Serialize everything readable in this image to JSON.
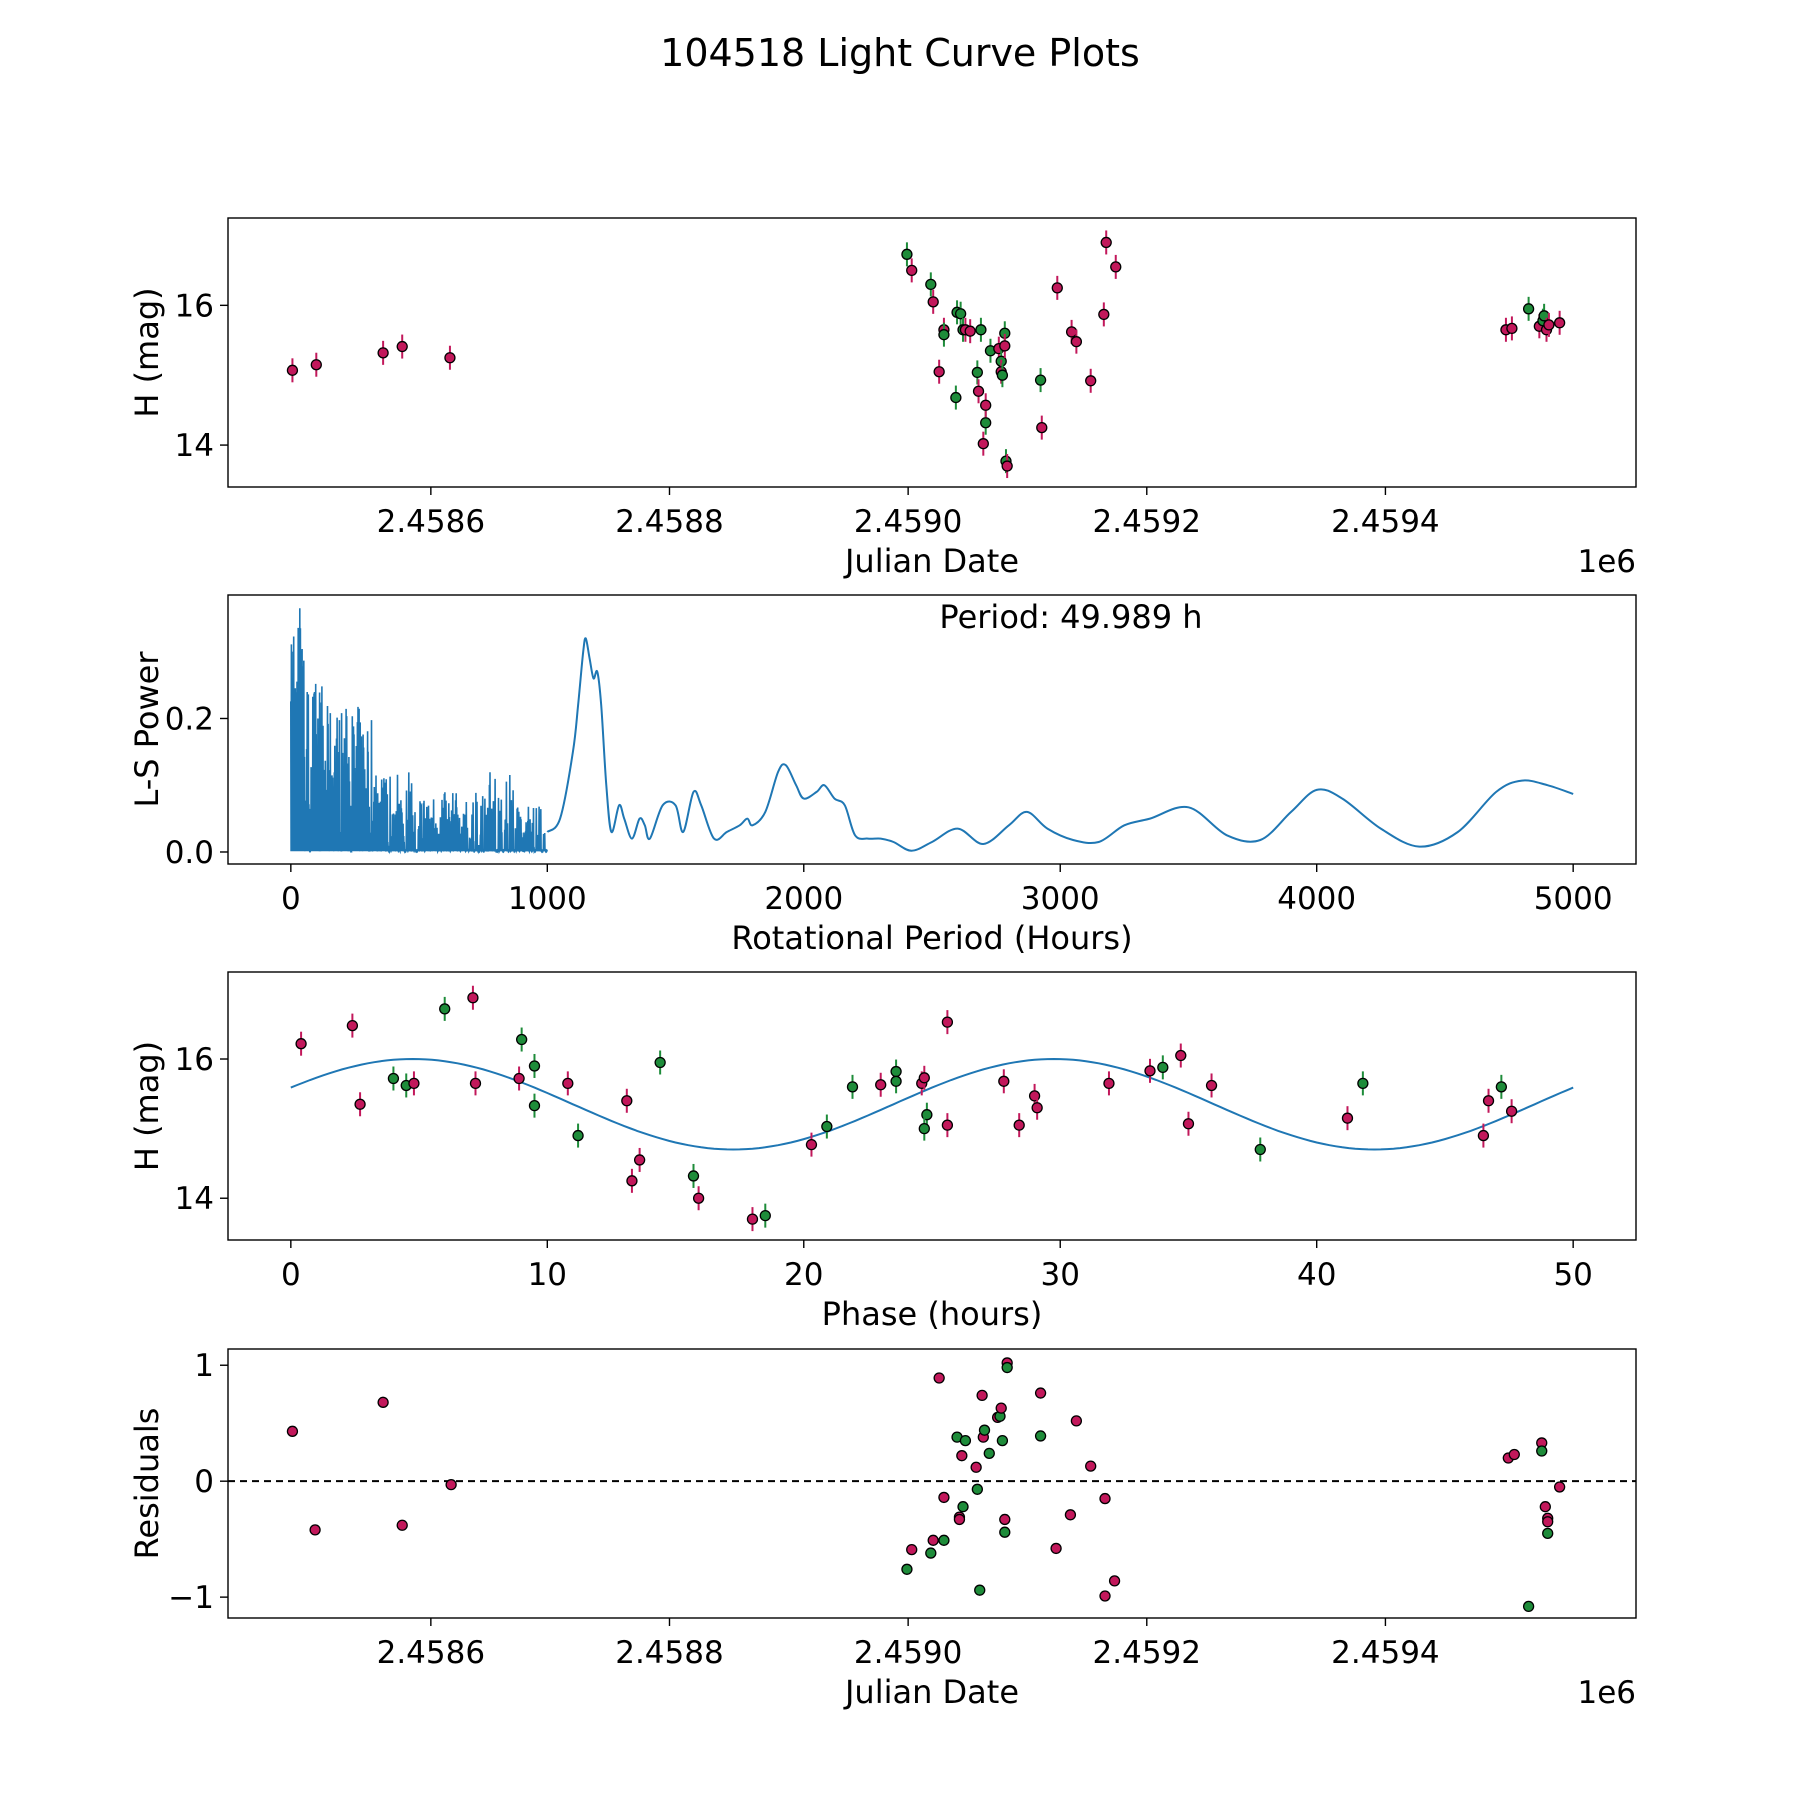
{
  "title": "104518 Light Curve Plots",
  "colors": {
    "red": "#c2185b",
    "green": "#1e8c3a",
    "line": "#1f77b4",
    "axis": "#000000"
  },
  "chart_data": [
    {
      "type": "scatter",
      "name": "light-curve",
      "xlabel": "Julian Date",
      "ylabel": "H (mag)",
      "x_offset_label": "1e6",
      "xlim": [
        2.45843,
        2.45961
      ],
      "ylim": [
        13.4,
        17.25
      ],
      "xticks": [
        2.4586,
        2.4588,
        2.459,
        2.4592,
        2.4594
      ],
      "xtick_labels": [
        "2.4586",
        "2.4588",
        "2.4590",
        "2.4592",
        "2.4594"
      ],
      "yticks": [
        14,
        16
      ],
      "ytick_labels": [
        "14",
        "16"
      ],
      "points": [
        [
          2.458484,
          15.07,
          "r"
        ],
        [
          2.458504,
          15.15,
          "r"
        ],
        [
          2.45856,
          15.32,
          "r"
        ],
        [
          2.458576,
          15.41,
          "r"
        ],
        [
          2.458616,
          15.25,
          "r"
        ],
        [
          2.458999,
          16.73,
          "g"
        ],
        [
          2.459003,
          16.5,
          "r"
        ],
        [
          2.459019,
          16.3,
          "g"
        ],
        [
          2.459021,
          16.05,
          "r"
        ],
        [
          2.45903,
          15.65,
          "r"
        ],
        [
          2.45903,
          15.58,
          "g"
        ],
        [
          2.459026,
          15.05,
          "r"
        ],
        [
          2.459041,
          15.9,
          "g"
        ],
        [
          2.45904,
          14.68,
          "g"
        ],
        [
          2.459044,
          15.88,
          "g"
        ],
        [
          2.459046,
          15.65,
          "g"
        ],
        [
          2.459048,
          15.65,
          "r"
        ],
        [
          2.459052,
          15.63,
          "r"
        ],
        [
          2.459058,
          15.04,
          "g"
        ],
        [
          2.459059,
          14.77,
          "r"
        ],
        [
          2.459061,
          15.65,
          "g"
        ],
        [
          2.459063,
          14.02,
          "r"
        ],
        [
          2.459065,
          14.32,
          "g"
        ],
        [
          2.459065,
          14.57,
          "r"
        ],
        [
          2.459069,
          15.35,
          "g"
        ],
        [
          2.459076,
          15.38,
          "r"
        ],
        [
          2.459078,
          15.2,
          "g"
        ],
        [
          2.459078,
          15.05,
          "r"
        ],
        [
          2.459079,
          15.0,
          "g"
        ],
        [
          2.459081,
          15.6,
          "g"
        ],
        [
          2.459081,
          15.42,
          "r"
        ],
        [
          2.459082,
          13.77,
          "g"
        ],
        [
          2.459083,
          13.7,
          "r"
        ],
        [
          2.459111,
          14.93,
          "g"
        ],
        [
          2.459112,
          14.25,
          "r"
        ],
        [
          2.459125,
          16.25,
          "r"
        ],
        [
          2.459137,
          15.62,
          "r"
        ],
        [
          2.459141,
          15.48,
          "r"
        ],
        [
          2.459153,
          14.92,
          "r"
        ],
        [
          2.459164,
          15.87,
          "r"
        ],
        [
          2.459166,
          16.9,
          "r"
        ],
        [
          2.459174,
          16.55,
          "r"
        ],
        [
          2.459501,
          15.65,
          "r"
        ],
        [
          2.459506,
          15.67,
          "r"
        ],
        [
          2.45952,
          15.95,
          "g"
        ],
        [
          2.459529,
          15.7,
          "r"
        ],
        [
          2.459532,
          15.78,
          "g"
        ],
        [
          2.459533,
          15.85,
          "g"
        ],
        [
          2.459535,
          15.65,
          "r"
        ],
        [
          2.459537,
          15.72,
          "r"
        ],
        [
          2.459546,
          15.75,
          "r"
        ]
      ]
    },
    {
      "type": "line",
      "name": "periodogram",
      "xlabel": "Rotational Period (Hours)",
      "ylabel": "L-S Power",
      "annotation": "Period: 49.989 h",
      "xlim": [
        -245,
        5245
      ],
      "ylim": [
        -0.018,
        0.385
      ],
      "xticks": [
        0,
        1000,
        2000,
        3000,
        4000,
        5000
      ],
      "xtick_labels": [
        "0",
        "1000",
        "2000",
        "3000",
        "4000",
        "5000"
      ],
      "yticks": [
        0.0,
        0.2
      ],
      "ytick_labels": [
        "0.0",
        "0.2"
      ],
      "smooth_curve": [
        [
          1000,
          0.03
        ],
        [
          1050,
          0.05
        ],
        [
          1100,
          0.15
        ],
        [
          1120,
          0.22
        ],
        [
          1140,
          0.3
        ],
        [
          1150,
          0.32
        ],
        [
          1165,
          0.29
        ],
        [
          1180,
          0.26
        ],
        [
          1195,
          0.27
        ],
        [
          1210,
          0.22
        ],
        [
          1230,
          0.1
        ],
        [
          1250,
          0.03
        ],
        [
          1280,
          0.07
        ],
        [
          1300,
          0.05
        ],
        [
          1330,
          0.02
        ],
        [
          1360,
          0.05
        ],
        [
          1380,
          0.04
        ],
        [
          1400,
          0.02
        ],
        [
          1450,
          0.07
        ],
        [
          1500,
          0.07
        ],
        [
          1530,
          0.03
        ],
        [
          1570,
          0.09
        ],
        [
          1600,
          0.07
        ],
        [
          1650,
          0.02
        ],
        [
          1700,
          0.03
        ],
        [
          1750,
          0.04
        ],
        [
          1780,
          0.05
        ],
        [
          1800,
          0.04
        ],
        [
          1850,
          0.06
        ],
        [
          1900,
          0.12
        ],
        [
          1930,
          0.13
        ],
        [
          1970,
          0.1
        ],
        [
          2000,
          0.08
        ],
        [
          2050,
          0.09
        ],
        [
          2080,
          0.1
        ],
        [
          2120,
          0.08
        ],
        [
          2160,
          0.07
        ],
        [
          2200,
          0.025
        ],
        [
          2250,
          0.02
        ],
        [
          2300,
          0.02
        ],
        [
          2350,
          0.015
        ],
        [
          2420,
          0.002
        ],
        [
          2500,
          0.015
        ],
        [
          2600,
          0.035
        ],
        [
          2700,
          0.012
        ],
        [
          2800,
          0.04
        ],
        [
          2870,
          0.06
        ],
        [
          2950,
          0.035
        ],
        [
          3050,
          0.018
        ],
        [
          3150,
          0.015
        ],
        [
          3250,
          0.04
        ],
        [
          3350,
          0.05
        ],
        [
          3500,
          0.067
        ],
        [
          3650,
          0.025
        ],
        [
          3780,
          0.018
        ],
        [
          3900,
          0.06
        ],
        [
          4000,
          0.093
        ],
        [
          4100,
          0.08
        ],
        [
          4250,
          0.035
        ],
        [
          4400,
          0.008
        ],
        [
          4550,
          0.03
        ],
        [
          4700,
          0.09
        ],
        [
          4800,
          0.107
        ],
        [
          4900,
          0.1
        ],
        [
          5000,
          0.087
        ]
      ],
      "spiky_region": {
        "from": 0,
        "to": 1000,
        "peak_max": 0.365
      }
    },
    {
      "type": "scatter",
      "name": "phased-curve",
      "xlabel": "Phase (hours)",
      "ylabel": "H (mag)",
      "xlim": [
        -2.45,
        52.45
      ],
      "ylim": [
        13.4,
        17.25
      ],
      "xticks": [
        0,
        10,
        20,
        30,
        40,
        50
      ],
      "xtick_labels": [
        "0",
        "10",
        "20",
        "30",
        "40",
        "50"
      ],
      "yticks": [
        14,
        16
      ],
      "ytick_labels": [
        "14",
        "16"
      ],
      "model": {
        "mean": 15.35,
        "amplitude": 0.65,
        "period": 25.0,
        "peak_phase": 4.75,
        "x_range": [
          0,
          50
        ]
      },
      "points": [
        [
          0.4,
          16.22,
          "r"
        ],
        [
          2.4,
          16.48,
          "r"
        ],
        [
          2.7,
          15.35,
          "r"
        ],
        [
          4.0,
          15.72,
          "g"
        ],
        [
          4.5,
          15.62,
          "g"
        ],
        [
          4.8,
          15.65,
          "r"
        ],
        [
          6.0,
          16.72,
          "g"
        ],
        [
          7.1,
          16.88,
          "r"
        ],
        [
          7.2,
          15.65,
          "r"
        ],
        [
          8.9,
          15.72,
          "r"
        ],
        [
          9.0,
          16.28,
          "g"
        ],
        [
          9.5,
          15.9,
          "g"
        ],
        [
          9.5,
          15.33,
          "g"
        ],
        [
          10.8,
          15.65,
          "r"
        ],
        [
          11.2,
          14.9,
          "g"
        ],
        [
          13.1,
          15.4,
          "r"
        ],
        [
          13.3,
          14.25,
          "r"
        ],
        [
          13.6,
          14.55,
          "r"
        ],
        [
          14.4,
          15.95,
          "g"
        ],
        [
          15.7,
          14.32,
          "g"
        ],
        [
          15.9,
          14.0,
          "r"
        ],
        [
          18.0,
          13.7,
          "r"
        ],
        [
          18.5,
          13.75,
          "g"
        ],
        [
          20.3,
          14.77,
          "r"
        ],
        [
          20.9,
          15.03,
          "g"
        ],
        [
          21.9,
          15.6,
          "g"
        ],
        [
          23.0,
          15.63,
          "r"
        ],
        [
          23.6,
          15.82,
          "g"
        ],
        [
          23.6,
          15.68,
          "g"
        ],
        [
          24.6,
          15.65,
          "r"
        ],
        [
          24.7,
          15.73,
          "r"
        ],
        [
          24.8,
          15.2,
          "g"
        ],
        [
          24.7,
          15.0,
          "g"
        ],
        [
          25.6,
          15.05,
          "r"
        ],
        [
          25.6,
          16.53,
          "r"
        ],
        [
          27.8,
          15.68,
          "r"
        ],
        [
          28.4,
          15.05,
          "r"
        ],
        [
          29.0,
          15.47,
          "r"
        ],
        [
          29.1,
          15.3,
          "r"
        ],
        [
          31.9,
          15.65,
          "r"
        ],
        [
          33.5,
          15.83,
          "r"
        ],
        [
          34.0,
          15.88,
          "g"
        ],
        [
          34.7,
          16.05,
          "r"
        ],
        [
          35.0,
          15.07,
          "r"
        ],
        [
          35.9,
          15.62,
          "r"
        ],
        [
          37.8,
          14.7,
          "g"
        ],
        [
          41.2,
          15.15,
          "r"
        ],
        [
          41.8,
          15.65,
          "g"
        ],
        [
          46.5,
          14.9,
          "r"
        ],
        [
          46.7,
          15.4,
          "r"
        ],
        [
          47.2,
          15.6,
          "g"
        ],
        [
          47.6,
          15.25,
          "r"
        ]
      ]
    },
    {
      "type": "scatter",
      "name": "residuals",
      "xlabel": "Julian Date",
      "ylabel": "Residuals",
      "x_offset_label": "1e6",
      "xlim": [
        2.45843,
        2.45961
      ],
      "ylim": [
        -1.18,
        1.14
      ],
      "xticks": [
        2.4586,
        2.4588,
        2.459,
        2.4592,
        2.4594
      ],
      "xtick_labels": [
        "2.4586",
        "2.4588",
        "2.4590",
        "2.4592",
        "2.4594"
      ],
      "yticks": [
        -1,
        0,
        1
      ],
      "ytick_labels": [
        "−1",
        "0",
        "1"
      ],
      "zero_line": 0,
      "points": [
        [
          2.458484,
          0.43,
          "r"
        ],
        [
          2.458503,
          -0.42,
          "r"
        ],
        [
          2.45856,
          0.68,
          "r"
        ],
        [
          2.458576,
          -0.38,
          "r"
        ],
        [
          2.458617,
          -0.03,
          "r"
        ],
        [
          2.458999,
          -0.76,
          "g"
        ],
        [
          2.459003,
          -0.59,
          "r"
        ],
        [
          2.459019,
          -0.62,
          "g"
        ],
        [
          2.459021,
          -0.51,
          "r"
        ],
        [
          2.459026,
          0.89,
          "r"
        ],
        [
          2.45903,
          -0.51,
          "g"
        ],
        [
          2.45903,
          -0.14,
          "r"
        ],
        [
          2.459041,
          0.38,
          "g"
        ],
        [
          2.459043,
          -0.31,
          "r"
        ],
        [
          2.459043,
          -0.33,
          "r"
        ],
        [
          2.459045,
          0.22,
          "r"
        ],
        [
          2.459046,
          -0.22,
          "g"
        ],
        [
          2.459048,
          0.35,
          "g"
        ],
        [
          2.459057,
          0.12,
          "r"
        ],
        [
          2.459058,
          -0.07,
          "g"
        ],
        [
          2.45906,
          -0.94,
          "g"
        ],
        [
          2.459062,
          0.74,
          "r"
        ],
        [
          2.459063,
          0.38,
          "r"
        ],
        [
          2.459064,
          0.44,
          "g"
        ],
        [
          2.459068,
          0.24,
          "g"
        ],
        [
          2.459075,
          0.55,
          "r"
        ],
        [
          2.459077,
          0.56,
          "g"
        ],
        [
          2.459078,
          0.63,
          "r"
        ],
        [
          2.459079,
          0.35,
          "g"
        ],
        [
          2.459081,
          -0.33,
          "r"
        ],
        [
          2.459081,
          -0.44,
          "g"
        ],
        [
          2.459083,
          1.02,
          "r"
        ],
        [
          2.459083,
          0.98,
          "g"
        ],
        [
          2.459111,
          0.76,
          "r"
        ],
        [
          2.459111,
          0.39,
          "g"
        ],
        [
          2.459124,
          -0.58,
          "r"
        ],
        [
          2.459136,
          -0.29,
          "r"
        ],
        [
          2.459141,
          0.52,
          "r"
        ],
        [
          2.459153,
          0.13,
          "r"
        ],
        [
          2.459165,
          -0.15,
          "r"
        ],
        [
          2.459165,
          -0.99,
          "r"
        ],
        [
          2.459173,
          -0.86,
          "r"
        ],
        [
          2.459503,
          0.2,
          "r"
        ],
        [
          2.459508,
          0.23,
          "r"
        ],
        [
          2.45952,
          -1.08,
          "g"
        ],
        [
          2.459531,
          0.33,
          "r"
        ],
        [
          2.459531,
          0.26,
          "g"
        ],
        [
          2.459534,
          -0.22,
          "r"
        ],
        [
          2.459536,
          -0.32,
          "r"
        ],
        [
          2.459536,
          -0.35,
          "r"
        ],
        [
          2.459536,
          -0.45,
          "g"
        ],
        [
          2.459546,
          -0.05,
          "r"
        ]
      ]
    }
  ]
}
